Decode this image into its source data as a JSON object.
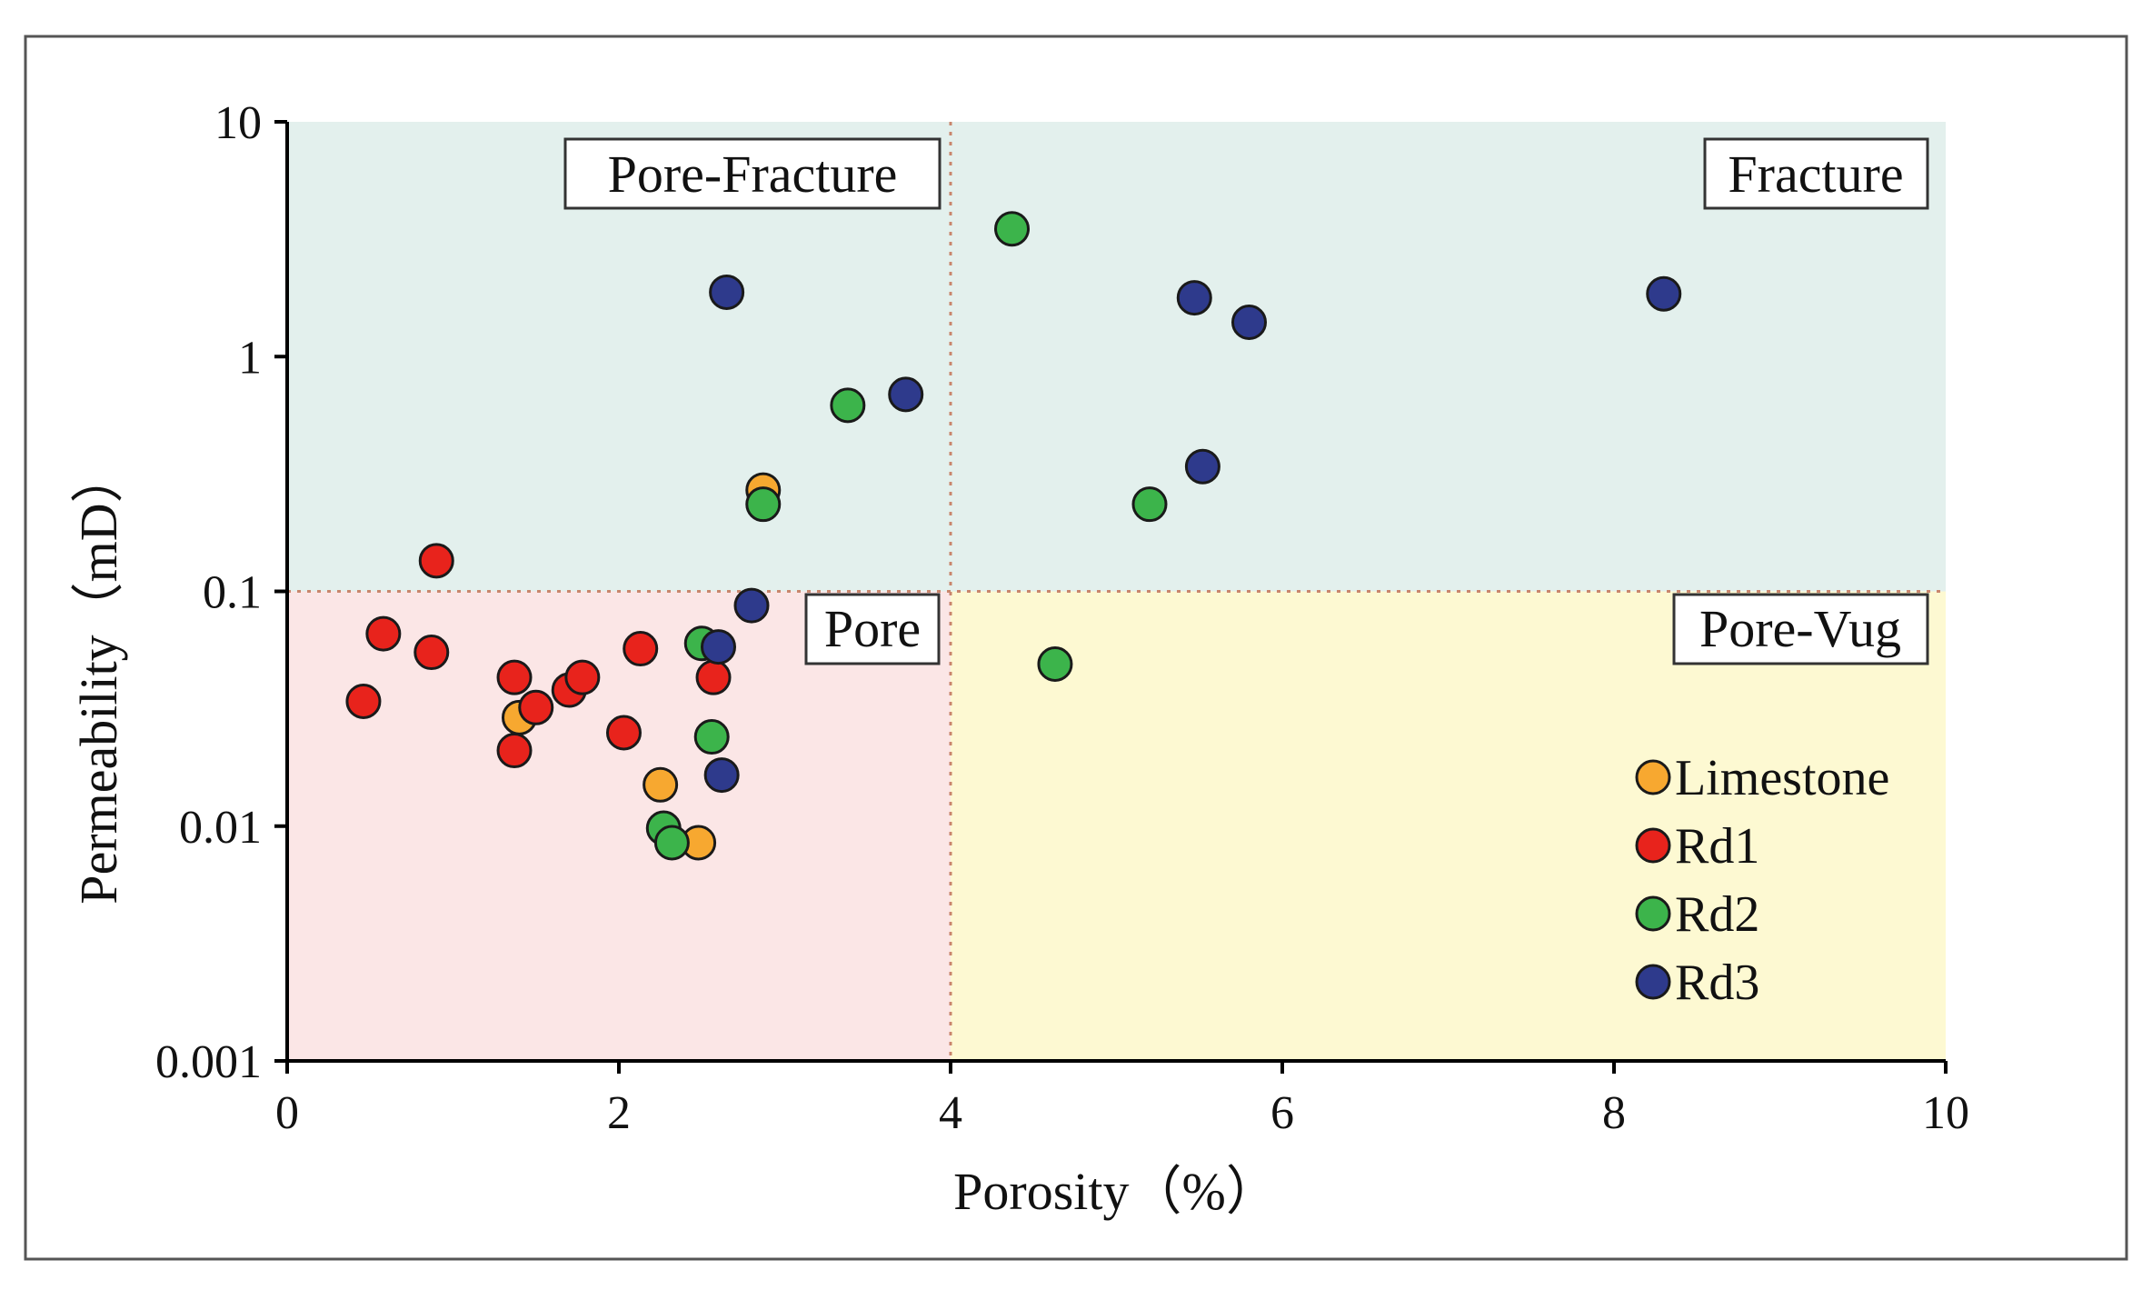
{
  "chart_data": {
    "type": "scatter",
    "xlabel": "Porosity（%）",
    "ylabel": "Permeability（mD）",
    "xlim": [
      0,
      10
    ],
    "ylim": [
      0.001,
      10
    ],
    "yscale": "log",
    "x_ticks": [
      0,
      2,
      4,
      6,
      8,
      10
    ],
    "x_tick_labels": [
      "0",
      "2",
      "4",
      "6",
      "8",
      "10"
    ],
    "y_ticks": [
      0.001,
      0.01,
      0.1,
      1,
      10
    ],
    "y_tick_labels": [
      "0.001",
      "0.01",
      "0.1",
      "1",
      "10"
    ],
    "thresholds": {
      "porosity": 4,
      "permeability": 0.1
    },
    "zones": [
      {
        "name": "Pore-Fracture",
        "color": "#e3f0ed"
      },
      {
        "name": "Fracture",
        "color": "#e3f0ed"
      },
      {
        "name": "Pore",
        "color": "#fbe6e6"
      },
      {
        "name": "Pore-Vug",
        "color": "#fdf9d2"
      }
    ],
    "legend_position": "bottom-right",
    "series": [
      {
        "name": "Limestone",
        "color": "#f7a830",
        "points": [
          [
            2.87,
            0.27
          ],
          [
            1.4,
            0.029
          ],
          [
            2.25,
            0.015
          ],
          [
            2.48,
            0.0085
          ]
        ]
      },
      {
        "name": "Rd1",
        "color": "#e8231c",
        "points": [
          [
            0.9,
            0.135
          ],
          [
            0.58,
            0.066
          ],
          [
            0.87,
            0.055
          ],
          [
            0.46,
            0.034
          ],
          [
            1.37,
            0.043
          ],
          [
            1.37,
            0.021
          ],
          [
            1.5,
            0.032
          ],
          [
            1.7,
            0.038
          ],
          [
            1.78,
            0.043
          ],
          [
            2.13,
            0.057
          ],
          [
            2.03,
            0.025
          ],
          [
            2.57,
            0.043
          ]
        ]
      },
      {
        "name": "Rd2",
        "color": "#3cb44b",
        "points": [
          [
            4.37,
            3.5
          ],
          [
            3.38,
            0.62
          ],
          [
            2.87,
            0.235
          ],
          [
            5.2,
            0.235
          ],
          [
            4.63,
            0.049
          ],
          [
            2.5,
            0.06
          ],
          [
            2.56,
            0.024
          ],
          [
            2.27,
            0.0098
          ],
          [
            2.32,
            0.0085
          ]
        ]
      },
      {
        "name": "Rd3",
        "color": "#2e3a8c",
        "points": [
          [
            2.65,
            1.88
          ],
          [
            5.47,
            1.78
          ],
          [
            5.8,
            1.4
          ],
          [
            8.3,
            1.85
          ],
          [
            3.73,
            0.69
          ],
          [
            5.52,
            0.34
          ],
          [
            2.8,
            0.087
          ],
          [
            2.6,
            0.058
          ],
          [
            2.62,
            0.0165
          ]
        ]
      }
    ]
  }
}
